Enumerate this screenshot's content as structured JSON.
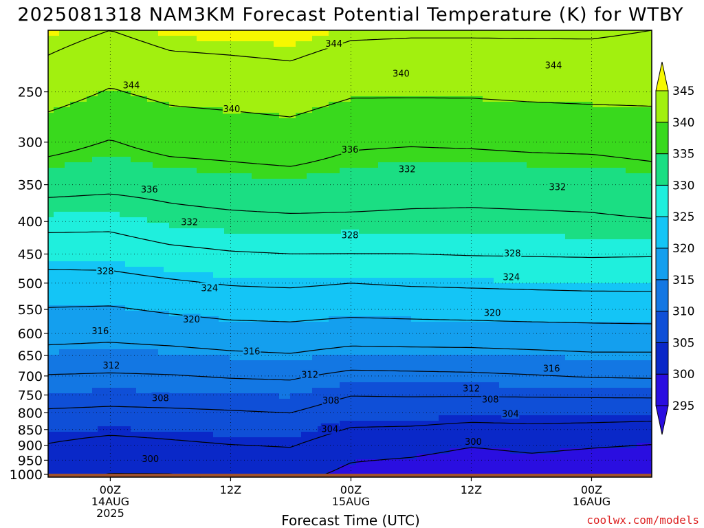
{
  "chart_data": {
    "type": "heatmap",
    "title": "2025081318 NAM3KM Forecast Potential Temperature (K) for WTBY",
    "xlabel": "Forecast Time (UTC)",
    "ylabel": "",
    "x_ticks": [
      {
        "lines": [
          "00Z",
          "14AUG",
          "2025"
        ],
        "hours": 6
      },
      {
        "lines": [
          "12Z"
        ],
        "hours": 18
      },
      {
        "lines": [
          "00Z",
          "15AUG"
        ],
        "hours": 30
      },
      {
        "lines": [
          "12Z"
        ],
        "hours": 42
      },
      {
        "lines": [
          "00Z",
          "16AUG"
        ],
        "hours": 54
      }
    ],
    "xlim_hours": [
      -0.2,
      60.0
    ],
    "y_ticks": [
      250,
      300,
      350,
      400,
      450,
      500,
      550,
      600,
      650,
      700,
      750,
      800,
      850,
      900,
      950,
      1000
    ],
    "ylim_hPa": [
      1010,
      200
    ],
    "colorbar": {
      "levels": [
        295,
        300,
        305,
        310,
        315,
        320,
        325,
        330,
        335,
        340,
        345
      ],
      "colors": [
        "#2a0ee0",
        "#0a28c8",
        "#0f4fd7",
        "#1377e3",
        "#149fee",
        "#14c5f6",
        "#1fefdd",
        "#1bde83",
        "#39d91d",
        "#a2f00f",
        "#f6f800"
      ],
      "extend": "both"
    },
    "contour_levels": [
      296,
      300,
      304,
      308,
      312,
      316,
      320,
      324,
      328,
      332,
      336,
      340,
      344
    ],
    "contour_labels": [
      {
        "text": "344",
        "hours": 28.3,
        "p": 210
      },
      {
        "text": "344",
        "hours": 50.2,
        "p": 227
      },
      {
        "text": "344",
        "hours": 8.1,
        "p": 244
      },
      {
        "text": "340",
        "hours": 35.0,
        "p": 234
      },
      {
        "text": "340",
        "hours": 18.1,
        "p": 266
      },
      {
        "text": "336",
        "hours": 29.9,
        "p": 308
      },
      {
        "text": "336",
        "hours": 9.9,
        "p": 356
      },
      {
        "text": "332",
        "hours": 35.6,
        "p": 331
      },
      {
        "text": "332",
        "hours": 50.6,
        "p": 353
      },
      {
        "text": "332",
        "hours": 13.9,
        "p": 401
      },
      {
        "text": "328",
        "hours": 29.9,
        "p": 420
      },
      {
        "text": "328",
        "hours": 46.1,
        "p": 449
      },
      {
        "text": "328",
        "hours": 5.5,
        "p": 479
      },
      {
        "text": "324",
        "hours": 46.0,
        "p": 489
      },
      {
        "text": "324",
        "hours": 15.9,
        "p": 509
      },
      {
        "text": "320",
        "hours": 44.1,
        "p": 557
      },
      {
        "text": "320",
        "hours": 14.1,
        "p": 570
      },
      {
        "text": "316",
        "hours": 5.0,
        "p": 595
      },
      {
        "text": "316",
        "hours": 20.1,
        "p": 640
      },
      {
        "text": "316",
        "hours": 50.0,
        "p": 681
      },
      {
        "text": "312",
        "hours": 6.1,
        "p": 674
      },
      {
        "text": "312",
        "hours": 25.9,
        "p": 697
      },
      {
        "text": "312",
        "hours": 42.0,
        "p": 732
      },
      {
        "text": "308",
        "hours": 11.0,
        "p": 758
      },
      {
        "text": "308",
        "hours": 28.0,
        "p": 765
      },
      {
        "text": "308",
        "hours": 43.9,
        "p": 762
      },
      {
        "text": "304",
        "hours": 45.9,
        "p": 803
      },
      {
        "text": "304",
        "hours": 27.9,
        "p": 848
      },
      {
        "text": "300",
        "hours": 42.2,
        "p": 888
      },
      {
        "text": "300",
        "hours": 10.0,
        "p": 945
      }
    ],
    "theta_profiles": [
      {
        "hours": -0.2,
        "p": [
          1010,
          1000,
          950,
          900,
          850,
          800,
          750,
          700,
          650,
          600,
          550,
          500,
          450,
          400,
          350,
          300,
          250,
          200
        ],
        "theta": [
          300.5,
          301,
          302.5,
          303.8,
          305.5,
          307.5,
          309.7,
          311.8,
          314.6,
          317.5,
          319.8,
          322.5,
          325.7,
          329.2,
          333.5,
          337.3,
          341.8,
          345.5
        ]
      },
      {
        "hours": 6,
        "p": [
          1010,
          1000,
          950,
          900,
          850,
          800,
          750,
          700,
          650,
          600,
          550,
          500,
          450,
          400,
          350,
          300,
          250,
          200
        ],
        "theta": [
          299.5,
          300,
          301.2,
          302.6,
          304.8,
          307.2,
          309.4,
          311.6,
          314.2,
          317.2,
          319.6,
          322.6,
          325.8,
          329,
          333,
          335.8,
          339.7,
          344
        ]
      },
      {
        "hours": 12,
        "p": [
          1010,
          1000,
          950,
          900,
          850,
          800,
          750,
          700,
          650,
          600,
          550,
          500,
          450,
          400,
          350,
          300,
          250,
          200
        ],
        "theta": [
          299.5,
          300,
          301.5,
          303.3,
          305.2,
          307.4,
          309.6,
          311.8,
          314.6,
          317.8,
          320.5,
          323.5,
          327,
          330.5,
          333.5,
          337.3,
          341,
          345.5
        ]
      },
      {
        "hours": 18,
        "p": [
          1010,
          1000,
          950,
          900,
          850,
          800,
          750,
          700,
          650,
          600,
          550,
          500,
          450,
          400,
          350,
          300,
          250,
          200
        ],
        "theta": [
          300.5,
          301,
          302.2,
          303.9,
          305.8,
          307.7,
          309.8,
          312.3,
          315.3,
          318.5,
          321.2,
          324.3,
          327.7,
          331,
          334.2,
          337.5,
          341.5,
          345.7
        ]
      },
      {
        "hours": 24,
        "p": [
          1010,
          1000,
          950,
          900,
          850,
          800,
          750,
          700,
          650,
          600,
          550,
          500,
          450,
          400,
          350,
          300,
          250,
          200
        ],
        "theta": [
          301,
          301.4,
          302.7,
          304.2,
          306.1,
          308,
          310.2,
          312.5,
          315.7,
          318.8,
          321.3,
          324.6,
          328,
          331.3,
          334.5,
          338,
          342,
          346
        ]
      },
      {
        "hours": 30,
        "p": [
          1010,
          1000,
          950,
          900,
          850,
          800,
          750,
          700,
          650,
          600,
          550,
          500,
          450,
          400,
          350,
          300,
          250,
          200
        ],
        "theta": [
          298.7,
          299,
          300.2,
          301.7,
          303.7,
          306,
          308.1,
          311,
          314.5,
          318,
          321,
          324,
          328,
          331.3,
          334,
          336.5,
          340.5,
          344.7
        ]
      },
      {
        "hours": 36,
        "p": [
          1010,
          1000,
          950,
          900,
          850,
          800,
          750,
          700,
          650,
          600,
          550,
          500,
          450,
          400,
          350,
          300,
          250,
          200
        ],
        "theta": [
          298,
          298.4,
          299.7,
          301.3,
          303.5,
          306,
          308.2,
          311.2,
          314.6,
          318.2,
          321.2,
          324.4,
          328,
          331.2,
          333.5,
          336.3,
          340.5,
          344.5
        ]
      },
      {
        "hours": 42,
        "p": [
          1010,
          1000,
          950,
          900,
          850,
          800,
          750,
          700,
          650,
          600,
          550,
          500,
          450,
          400,
          350,
          300,
          250,
          200
        ],
        "theta": [
          296.8,
          297.2,
          298.7,
          300.2,
          302.8,
          305.6,
          308.2,
          311.4,
          314.7,
          318.3,
          321.4,
          324.6,
          328.2,
          331.2,
          333.3,
          336.5,
          340.5,
          344.5
        ]
      },
      {
        "hours": 48,
        "p": [
          1010,
          1000,
          950,
          900,
          850,
          800,
          750,
          700,
          650,
          600,
          550,
          500,
          450,
          400,
          350,
          300,
          250,
          200
        ],
        "theta": [
          297.5,
          297.9,
          299.3,
          300.8,
          303.1,
          305.7,
          308.3,
          311.8,
          315.1,
          318.5,
          321.6,
          324.8,
          328.3,
          331.3,
          333.5,
          336.8,
          340.8,
          344.5
        ]
      },
      {
        "hours": 54,
        "p": [
          1010,
          1000,
          950,
          900,
          850,
          800,
          750,
          700,
          650,
          600,
          550,
          500,
          450,
          400,
          350,
          300,
          250,
          200
        ],
        "theta": [
          297,
          297.4,
          298.8,
          300.3,
          302.9,
          305.6,
          308.4,
          312.3,
          315.5,
          318.7,
          321.7,
          325,
          328.4,
          331.5,
          333.5,
          337,
          341,
          344.5
        ]
      },
      {
        "hours": 60,
        "p": [
          1010,
          1000,
          950,
          900,
          850,
          800,
          750,
          700,
          650,
          600,
          550,
          500,
          450,
          400,
          350,
          300,
          250,
          200
        ],
        "theta": [
          296.5,
          296.9,
          298.2,
          299.8,
          302.6,
          305.4,
          308.5,
          312.5,
          315.5,
          318.8,
          321.8,
          325,
          328.3,
          331.8,
          334.2,
          337.5,
          341,
          344
        ]
      }
    ],
    "terrain_color": "#a0522d",
    "grid": true
  },
  "credit": "coolwx.com/models"
}
